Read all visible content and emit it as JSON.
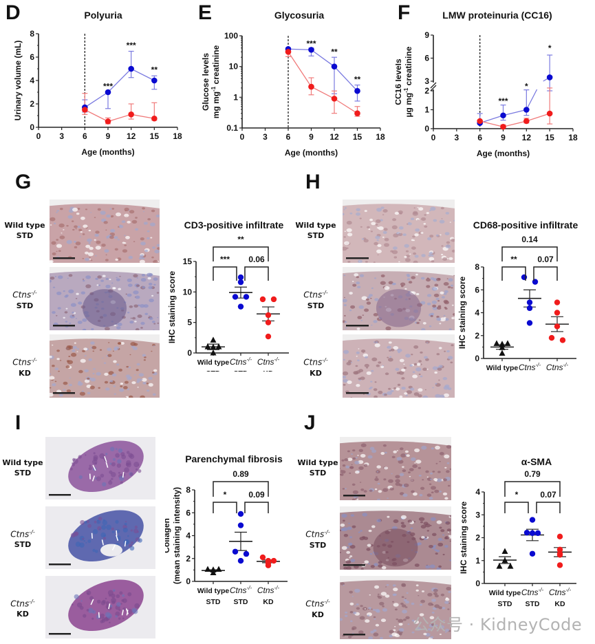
{
  "panels": {
    "D": "D",
    "E": "E",
    "F": "F",
    "G": "G",
    "H": "H",
    "I": "I",
    "J": "J"
  },
  "colors": {
    "blue": "#0a0ad0",
    "blue_line": "#7a7ae0",
    "red": "#f01c1c",
    "red_line": "#f07a7a",
    "black": "#111111"
  },
  "row_labels": {
    "wild_type": "Wild type",
    "std": "STD",
    "ctns": "Ctns",
    "ctns_sup": "-/-",
    "kd": "KD"
  },
  "micrograph_sets": {
    "G": [
      "Wild type STD",
      "Ctns-/- STD",
      "Ctns-/- KD"
    ],
    "H": [
      "Wild type STD",
      "Ctns-/- STD",
      "Ctns-/- KD"
    ],
    "I": [
      "Wild type STD",
      "Ctns-/- STD",
      "Ctns-/- KD"
    ],
    "J": [
      "Wild type STD",
      "Ctns-/- STD",
      "Ctns-/- KD"
    ]
  },
  "watermark": "公众号 · KidneyCode",
  "chart_data": [
    {
      "id": "D",
      "type": "line",
      "title": "Polyuria",
      "xlabel": "Age (months)",
      "ylabel": "Urinary volume (mL)",
      "xlim": [
        0,
        18
      ],
      "ylim": [
        0,
        8
      ],
      "xticks": [
        "0",
        "3",
        "6",
        "9",
        "12",
        "15",
        "18"
      ],
      "yticks": [
        "0",
        "2",
        "4",
        "6",
        "8"
      ],
      "vline_x": 6,
      "x": [
        6,
        9,
        12,
        15
      ],
      "series": [
        {
          "name": "Ctns-/- STD",
          "color": "blue",
          "values": [
            1.7,
            3.0,
            5.0,
            4.0
          ],
          "err_low": [
            1.3,
            1.6,
            4.25,
            3.25
          ],
          "err_high": [
            2.35,
            3.0,
            6.5,
            4.4
          ]
        },
        {
          "name": "Ctns-/- KD",
          "color": "red",
          "values": [
            1.5,
            0.5,
            1.1,
            0.75
          ],
          "err_low": [
            1.1,
            0.3,
            0.7,
            0.6
          ],
          "err_high": [
            2.9,
            0.8,
            2.0,
            2.1
          ]
        }
      ],
      "annotations": [
        {
          "x": 9,
          "y": 3.5,
          "text": "***"
        },
        {
          "x": 12,
          "y": 7.0,
          "text": "***"
        },
        {
          "x": 15,
          "y": 4.9,
          "text": "**"
        }
      ]
    },
    {
      "id": "E",
      "type": "line",
      "scale": "log",
      "title": "Glycosuria",
      "xlabel": "Age (months)",
      "ylabel": "Glucose levels",
      "ylabel2": "mg mg",
      "ylabel2_sup": "-1",
      "ylabel2_tail": " creatinine",
      "xlim": [
        0,
        18
      ],
      "ylim": [
        0.1,
        100
      ],
      "xticks": [
        "0",
        "3",
        "6",
        "9",
        "12",
        "15",
        "18"
      ],
      "yticks": [
        "0.1",
        "1",
        "10",
        "100"
      ],
      "ytick_values": [
        0.1,
        1,
        10,
        100
      ],
      "vline_x": 6,
      "x": [
        6,
        9,
        12,
        15
      ],
      "series": [
        {
          "name": "Ctns-/- STD",
          "color": "blue",
          "values": [
            37,
            35,
            10,
            1.6
          ],
          "err_low": [
            30,
            22,
            1.3,
            0.75
          ],
          "err_high": [
            40,
            40,
            20,
            2.5
          ]
        },
        {
          "name": "Ctns-/- KD",
          "color": "red",
          "values": [
            30,
            2.2,
            0.9,
            0.3
          ],
          "err_low": [
            21,
            1.2,
            0.3,
            0.24
          ],
          "err_high": [
            33,
            4.3,
            1.6,
            0.5
          ]
        }
      ],
      "annotations": [
        {
          "x": 9,
          "y": 55,
          "text": "***"
        },
        {
          "x": 12,
          "y": 30,
          "text": "**"
        },
        {
          "x": 15,
          "y": 3.8,
          "text": "**"
        }
      ]
    },
    {
      "id": "F",
      "type": "line",
      "scale": "broken",
      "title": "LMW proteinuria (CC16)",
      "xlabel": "Age (months)",
      "ylabel": "CC16 levels",
      "ylabel2": "µg mg",
      "ylabel2_sup": "-1",
      "ylabel2_tail": " creatinine",
      "xlim": [
        0,
        18
      ],
      "ylim_lower": [
        0,
        2
      ],
      "ylim_upper": [
        3,
        9
      ],
      "xticks": [
        "0",
        "3",
        "6",
        "9",
        "12",
        "15",
        "18"
      ],
      "yticks": [
        "0",
        "1",
        "2",
        "3",
        "6",
        "9"
      ],
      "ytick_values": [
        0,
        1,
        2,
        3,
        6,
        9
      ],
      "vline_x": 6,
      "x": [
        6,
        9,
        12,
        15
      ],
      "series": [
        {
          "name": "Ctns-/- STD",
          "color": "blue",
          "values": [
            0.3,
            0.7,
            1.0,
            3.5
          ],
          "err_low": [
            0.3,
            0.45,
            0.7,
            2.0
          ],
          "err_high": [
            0.8,
            1.25,
            2.05,
            6.4
          ]
        },
        {
          "name": "Ctns-/- KD",
          "color": "red",
          "values": [
            0.4,
            0.1,
            0.4,
            0.8
          ],
          "err_low": [
            0.25,
            0.05,
            0.3,
            0.25
          ],
          "err_high": [
            0.45,
            0.2,
            0.55,
            2.15
          ]
        }
      ],
      "annotations": [
        {
          "x": 9,
          "y": 1.45,
          "text": "***"
        },
        {
          "x": 12,
          "y": 2.35,
          "text": "*"
        },
        {
          "x": 15,
          "y": 7.3,
          "text": "*"
        }
      ]
    },
    {
      "id": "G",
      "type": "scatter",
      "title": "CD3-positive infiltrate",
      "ylabel": "IHC staining score",
      "ylim": [
        0,
        15
      ],
      "yticks": [
        "0",
        "5",
        "10",
        "15"
      ],
      "ytick_values": [
        0,
        5,
        10,
        15
      ],
      "categories": [
        {
          "line1": "Wild type",
          "line2": "STD"
        },
        {
          "line1": "Ctns",
          "sup": "-/-",
          "line2": "STD"
        },
        {
          "line1": "Ctns",
          "sup": "-/-",
          "line2": "KD"
        }
      ],
      "groups": [
        {
          "color": "black",
          "marker": "triangle",
          "points": [
            2.1,
            1.0,
            1.0,
            0.95,
            0.0
          ],
          "mean": 1.0,
          "sem": 0.45
        },
        {
          "color": "blue",
          "marker": "circle",
          "points": [
            12.4,
            11.6,
            9.2,
            9.2,
            7.6
          ],
          "mean": 9.9,
          "sem": 0.9
        },
        {
          "color": "red",
          "marker": "circle",
          "points": [
            8.8,
            8.8,
            6.2,
            5.0,
            2.7
          ],
          "mean": 6.4,
          "sem": 1.15
        }
      ],
      "brackets": [
        {
          "from": 0,
          "to": 1,
          "level": "low",
          "text": "***"
        },
        {
          "from": 1,
          "to": 2,
          "level": "low",
          "text": "0.06"
        },
        {
          "from": 0,
          "to": 2,
          "level": "high",
          "text": "**"
        }
      ]
    },
    {
      "id": "H",
      "type": "scatter",
      "title": "CD68-positive infiltrate",
      "ylabel": "IHC staining score",
      "ylim": [
        0,
        8
      ],
      "yticks": [
        "0",
        "2",
        "4",
        "6",
        "8"
      ],
      "ytick_values": [
        0,
        2,
        4,
        6,
        8
      ],
      "categories": [
        {
          "line1": "Wild type",
          "line2": "STD"
        },
        {
          "line1": "Ctns",
          "sup": "-/-",
          "line2": "STD"
        },
        {
          "line1": "Ctns",
          "sup": "-/-",
          "line2": "KD"
        }
      ],
      "groups": [
        {
          "color": "black",
          "marker": "triangle",
          "points": [
            1.3,
            1.3,
            1.25,
            0.95,
            0.45
          ],
          "mean": 1.0,
          "sem": 0.2
        },
        {
          "color": "blue",
          "marker": "circle",
          "points": [
            7.1,
            6.7,
            4.9,
            4.4,
            3.1
          ],
          "mean": 5.25,
          "sem": 0.75
        },
        {
          "color": "red",
          "marker": "circle",
          "points": [
            4.9,
            4.0,
            2.8,
            1.8,
            1.6
          ],
          "mean": 3.0,
          "sem": 0.65
        }
      ],
      "brackets": [
        {
          "from": 0,
          "to": 1,
          "level": "low",
          "text": "**"
        },
        {
          "from": 1,
          "to": 2,
          "level": "low",
          "text": "0.07"
        },
        {
          "from": 0,
          "to": 2,
          "level": "high",
          "text": "0.14"
        }
      ]
    },
    {
      "id": "I",
      "type": "scatter",
      "title": "Parenchymal fibrosis",
      "ylabel": "Collagen",
      "ylabel2": "(mean staining intensity)",
      "ylim": [
        0,
        8
      ],
      "yticks": [
        "0",
        "2",
        "4",
        "6",
        "8"
      ],
      "ytick_values": [
        0,
        2,
        4,
        6,
        8
      ],
      "categories": [
        {
          "line1": "Wild type",
          "line2": "STD"
        },
        {
          "line1": "Ctns",
          "sup": "-/-",
          "line2": "STD"
        },
        {
          "line1": "Ctns",
          "sup": "-/-",
          "line2": "KD"
        }
      ],
      "groups": [
        {
          "color": "black",
          "marker": "triangle",
          "points": [
            1.05,
            1.05,
            1.0,
            1.0,
            0.75
          ],
          "mean": 0.95,
          "sem": 0.07
        },
        {
          "color": "blue",
          "marker": "circle",
          "points": [
            5.9,
            4.9,
            2.6,
            2.4,
            1.8
          ],
          "mean": 3.5,
          "sem": 0.8
        },
        {
          "color": "red",
          "marker": "circle",
          "points": [
            2.1,
            1.8,
            1.8,
            1.6,
            1.4
          ],
          "mean": 1.75,
          "sem": 0.12
        }
      ],
      "brackets": [
        {
          "from": 0,
          "to": 1,
          "level": "low",
          "text": "*"
        },
        {
          "from": 1,
          "to": 2,
          "level": "low",
          "text": "0.09"
        },
        {
          "from": 0,
          "to": 2,
          "level": "high",
          "text": "0.89"
        }
      ]
    },
    {
      "id": "J",
      "type": "scatter",
      "title": "α-SMA",
      "ylabel": "IHC staining score",
      "ylim": [
        0,
        4
      ],
      "yticks": [
        "0",
        "1",
        "2",
        "3",
        "4"
      ],
      "ytick_values": [
        0,
        1,
        2,
        3,
        4
      ],
      "categories": [
        {
          "line1": "Wild type",
          "line2": "STD"
        },
        {
          "line1": "Ctns",
          "sup": "-/-",
          "line2": "STD"
        },
        {
          "line1": "Ctns",
          "sup": "-/-",
          "line2": "KD"
        }
      ],
      "groups": [
        {
          "color": "black",
          "marker": "triangle",
          "points": [
            1.4,
            1.0,
            0.75,
            0.75
          ],
          "mean": 1.02,
          "sem": 0.15
        },
        {
          "color": "blue",
          "marker": "circle",
          "points": [
            2.78,
            2.22,
            2.2,
            2.2,
            1.3
          ],
          "mean": 2.12,
          "sem": 0.25
        },
        {
          "color": "red",
          "marker": "circle",
          "points": [
            2.05,
            1.48,
            1.25,
            1.3,
            0.8
          ],
          "mean": 1.37,
          "sem": 0.2
        }
      ],
      "brackets": [
        {
          "from": 0,
          "to": 1,
          "level": "low",
          "text": "*"
        },
        {
          "from": 1,
          "to": 2,
          "level": "low",
          "text": "0.07"
        },
        {
          "from": 0,
          "to": 2,
          "level": "high",
          "text": "0.79"
        }
      ]
    }
  ]
}
